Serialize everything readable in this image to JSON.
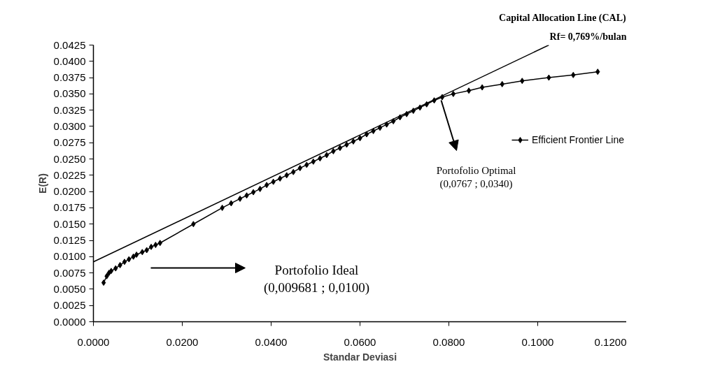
{
  "chart_data": {
    "type": "line",
    "xlabel": "Standar Deviasi",
    "ylabel": "E(R)",
    "xlim": [
      0,
      0.12
    ],
    "ylim": [
      0,
      0.0425
    ],
    "xticks": [
      {
        "value": 0,
        "label": "0.0000"
      },
      {
        "value": 0.02,
        "label": "0.0200"
      },
      {
        "value": 0.04,
        "label": "0.0400"
      },
      {
        "value": 0.06,
        "label": "0.0600"
      },
      {
        "value": 0.08,
        "label": "0.0800"
      },
      {
        "value": 0.1,
        "label": "0.1000"
      },
      {
        "value": 0.12,
        "label": "0.1200"
      }
    ],
    "yticks": [
      {
        "value": 0,
        "label": "0.0000"
      },
      {
        "value": 0.0025,
        "label": "0.0025"
      },
      {
        "value": 0.005,
        "label": "0.0050"
      },
      {
        "value": 0.0075,
        "label": "0.0075"
      },
      {
        "value": 0.01,
        "label": "0.0100"
      },
      {
        "value": 0.0125,
        "label": "0.0125"
      },
      {
        "value": 0.015,
        "label": "0.0150"
      },
      {
        "value": 0.0175,
        "label": "0.0175"
      },
      {
        "value": 0.02,
        "label": "0.0200"
      },
      {
        "value": 0.0225,
        "label": "0.0225"
      },
      {
        "value": 0.025,
        "label": "0.0250"
      },
      {
        "value": 0.0275,
        "label": "0.0275"
      },
      {
        "value": 0.03,
        "label": "0.0300"
      },
      {
        "value": 0.0325,
        "label": "0.0325"
      },
      {
        "value": 0.035,
        "label": "0.0350"
      },
      {
        "value": 0.0375,
        "label": "0.0375"
      },
      {
        "value": 0.04,
        "label": "0.0400"
      },
      {
        "value": 0.0425,
        "label": "0.0425"
      }
    ],
    "grid": false,
    "legend": "right",
    "series": [
      {
        "color": "#000000",
        "marker": "none",
        "x": [
          0,
          0.1025
        ],
        "values": [
          0.0092,
          0.0425
        ]
      },
      {
        "name": "Efficient Frontier Line",
        "color": "#000000",
        "marker": "diamond",
        "x": [
          0.0023,
          0.003,
          0.0035,
          0.004,
          0.005,
          0.006,
          0.007,
          0.008,
          0.009,
          0.0097,
          0.011,
          0.012,
          0.013,
          0.014,
          0.015,
          0.0225,
          0.029,
          0.031,
          0.033,
          0.0345,
          0.036,
          0.0375,
          0.039,
          0.0405,
          0.042,
          0.0435,
          0.045,
          0.0465,
          0.048,
          0.0495,
          0.051,
          0.0525,
          0.054,
          0.0555,
          0.057,
          0.0585,
          0.06,
          0.0615,
          0.063,
          0.0645,
          0.066,
          0.0675,
          0.069,
          0.0705,
          0.072,
          0.0735,
          0.075,
          0.0767,
          0.0785,
          0.081,
          0.0845,
          0.0875,
          0.092,
          0.0965,
          0.1025,
          0.108,
          0.1135
        ],
        "values": [
          0.006,
          0.007,
          0.0075,
          0.0078,
          0.0082,
          0.0087,
          0.0092,
          0.0096,
          0.01,
          0.0103,
          0.0107,
          0.011,
          0.0115,
          0.0118,
          0.0121,
          0.015,
          0.0175,
          0.0182,
          0.0189,
          0.0194,
          0.0199,
          0.0204,
          0.021,
          0.0215,
          0.022,
          0.0225,
          0.023,
          0.0236,
          0.0241,
          0.0246,
          0.0251,
          0.0256,
          0.0262,
          0.0267,
          0.0272,
          0.0277,
          0.0282,
          0.0288,
          0.0293,
          0.0298,
          0.0303,
          0.0308,
          0.0314,
          0.0319,
          0.0324,
          0.0329,
          0.0334,
          0.034,
          0.0345,
          0.035,
          0.0355,
          0.036,
          0.0365,
          0.037,
          0.0375,
          0.0379,
          0.0384
        ]
      }
    ],
    "annotations": [
      "Capital Allocation Line (CAL)",
      "Rf= 0,769%/bulan",
      "Portofolio Ideal\n(0,009681 ; 0,0100)",
      "Portofolio Optimal\n(0,0767 ; 0,0340)"
    ]
  }
}
